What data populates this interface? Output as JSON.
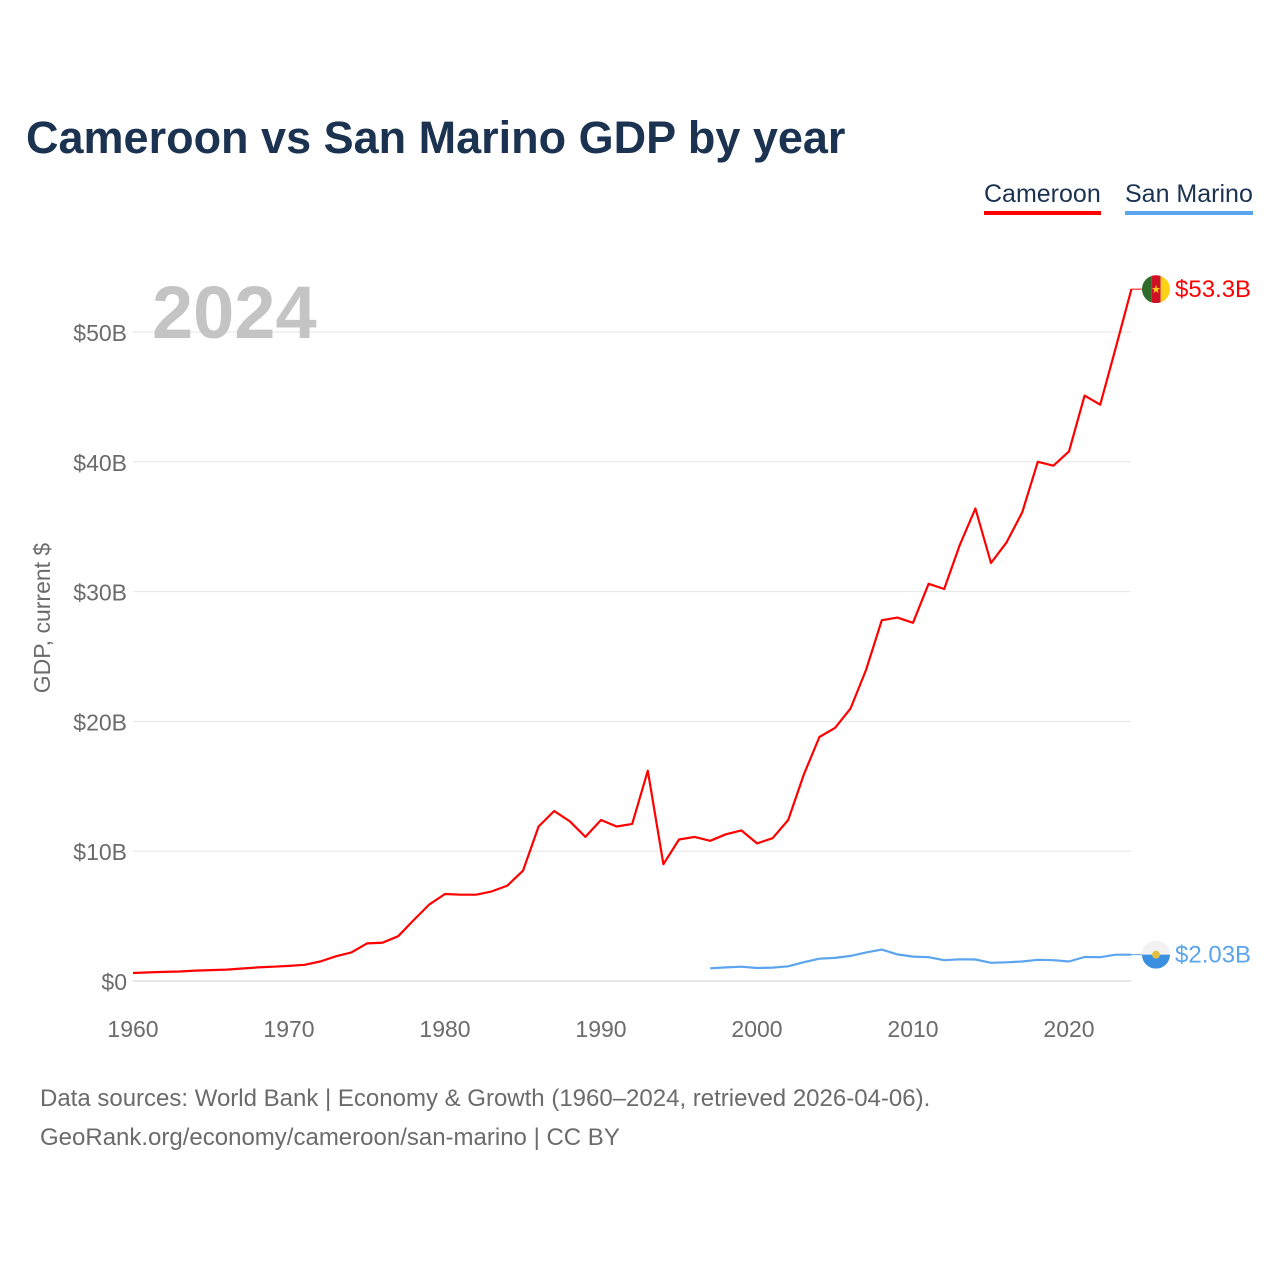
{
  "chart_data": {
    "type": "line",
    "title": "Cameroon vs San Marino GDP by year",
    "ylabel": "GDP, current $",
    "xlabel": "",
    "year_label": "2024",
    "xlim": [
      1960,
      2024
    ],
    "ylim": [
      0,
      55
    ],
    "x_ticks": [
      1960,
      1970,
      1980,
      1990,
      2000,
      2010,
      2020
    ],
    "x_tick_labels": [
      "1960",
      "1970",
      "1980",
      "1990",
      "2000",
      "2010",
      "2020"
    ],
    "y_ticks": [
      0,
      10,
      20,
      30,
      40,
      50
    ],
    "y_tick_labels": [
      "$0",
      "$10B",
      "$20B",
      "$30B",
      "$40B",
      "$50B"
    ],
    "grid": true,
    "legend_position": "top-right",
    "series": [
      {
        "name": "Cameroon",
        "color": "#ff0000",
        "end_label": "$53.3B",
        "start_year": 1960,
        "values": [
          0.62,
          0.66,
          0.7,
          0.73,
          0.8,
          0.84,
          0.88,
          0.96,
          1.05,
          1.1,
          1.16,
          1.25,
          1.5,
          1.9,
          2.2,
          2.9,
          2.95,
          3.45,
          4.7,
          5.9,
          6.7,
          6.65,
          6.65,
          6.9,
          7.35,
          8.5,
          11.9,
          13.1,
          12.3,
          11.1,
          12.4,
          11.9,
          12.1,
          16.2,
          9.0,
          10.9,
          11.1,
          10.8,
          11.3,
          11.6,
          10.6,
          11.0,
          12.4,
          15.9,
          18.8,
          19.5,
          21.0,
          24.0,
          27.8,
          28.0,
          27.6,
          30.6,
          30.2,
          33.6,
          36.4,
          32.2,
          33.8,
          36.1,
          40.0,
          39.7,
          40.8,
          45.1,
          44.4,
          48.8,
          53.3
        ]
      },
      {
        "name": "San Marino",
        "color": "#5aa5ee",
        "end_label": "$2.03B",
        "start_year": 1997,
        "values": [
          0.98,
          1.05,
          1.1,
          1.0,
          1.03,
          1.13,
          1.45,
          1.72,
          1.78,
          1.93,
          2.2,
          2.42,
          2.05,
          1.88,
          1.83,
          1.6,
          1.67,
          1.66,
          1.4,
          1.44,
          1.5,
          1.63,
          1.6,
          1.5,
          1.85,
          1.83,
          2.03,
          2.03
        ]
      }
    ]
  },
  "footer": {
    "line1": "Data sources: World Bank | Economy & Growth (1960–2024, retrieved 2026-04-06).",
    "line2": "GeoRank.org/economy/cameroon/san-marino | CC BY"
  }
}
